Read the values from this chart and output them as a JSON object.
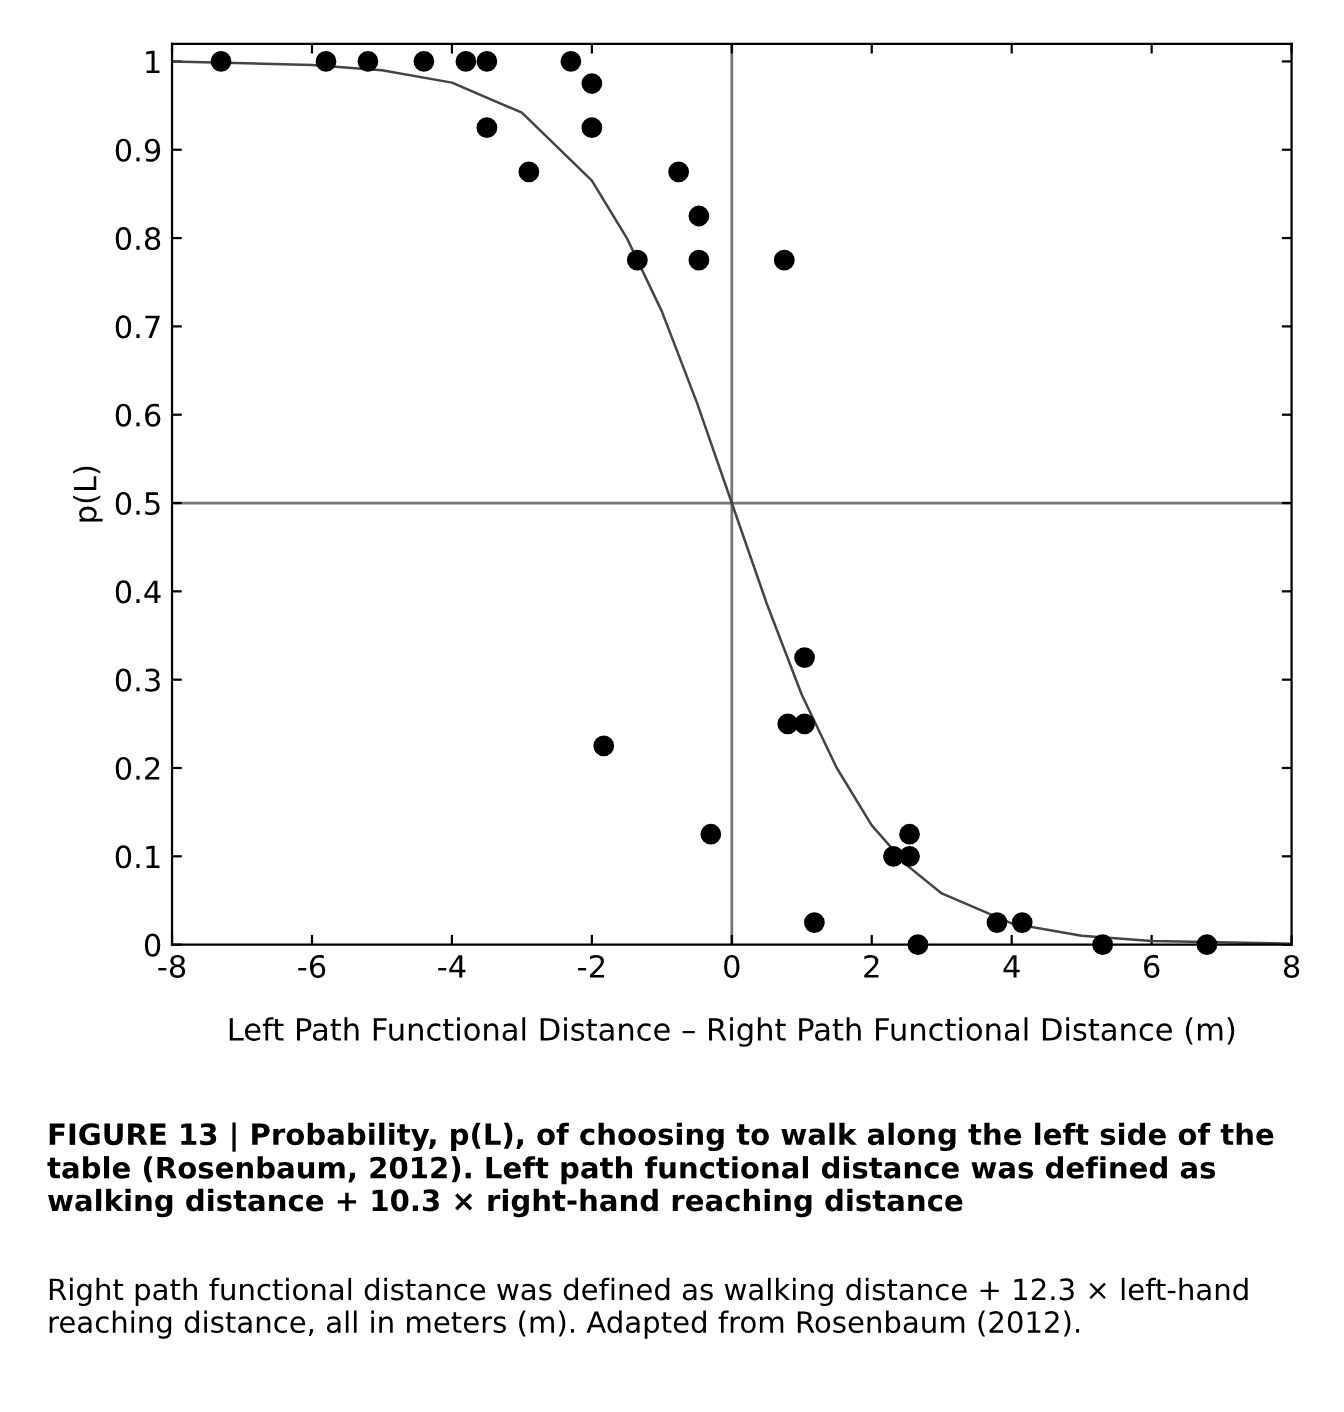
{
  "chart_data": {
    "type": "scatter",
    "xlabel": "Left Path Functional Distance – Right Path Functional Distance (m)",
    "ylabel": "p(L)",
    "xlim": [
      -8,
      8
    ],
    "xticks": [
      -8,
      -6,
      -4,
      -2,
      0,
      2,
      4,
      6,
      8
    ],
    "ylim": [
      0,
      1.02
    ],
    "yticks": [
      0,
      0.1,
      0.2,
      0.3,
      0.4,
      0.5,
      0.6,
      0.7,
      0.8,
      0.9,
      1
    ],
    "series": [
      {
        "color": "#000000",
        "marker": "circle",
        "x": [
          -7.3,
          -5.8,
          -5.2,
          -4.4,
          -3.8,
          -3.5,
          -2.3,
          -3.5,
          -2.9,
          -2.0,
          -2.0,
          -0.76,
          -0.47,
          -1.35,
          -0.47,
          0.75,
          -1.83,
          -0.3,
          1.04,
          0.8,
          1.04,
          1.18,
          2.31,
          2.54,
          2.54,
          2.66,
          3.79,
          4.15,
          5.3,
          6.79
        ],
        "values": [
          1,
          1,
          1,
          1,
          1,
          1,
          1,
          0.925,
          0.875,
          0.975,
          0.925,
          0.875,
          0.825,
          0.775,
          0.775,
          0.775,
          0.225,
          0.125,
          0.325,
          0.25,
          0.25,
          0.025,
          0.1,
          0.1,
          0.125,
          0,
          0.025,
          0.025,
          0,
          0
        ]
      },
      {
        "type": "line",
        "color": "#444444",
        "marker": "none",
        "line_style": "solid",
        "x": [
          -8,
          -6,
          -5,
          -4,
          -3,
          -2,
          -1.5,
          -1,
          -0.5,
          0,
          0.5,
          1,
          1.5,
          2,
          2.5,
          3,
          4,
          5,
          6,
          8
        ],
        "values": [
          1.0,
          0.996,
          0.99,
          0.976,
          0.942,
          0.865,
          0.8,
          0.717,
          0.614,
          0.5,
          0.386,
          0.283,
          0.2,
          0.135,
          0.09,
          0.058,
          0.024,
          0.01,
          0.004,
          0.001
        ]
      }
    ],
    "ref_lines": [
      {
        "axis": "x",
        "value": 0,
        "color": "#777777"
      },
      {
        "axis": "y",
        "value": 0.5,
        "color": "#777777"
      }
    ],
    "grid": false,
    "legend": false,
    "annotations": [
      "FIGURE 13 | Probability, p(L), of choosing to walk along the left side of the table (Rosenbaum, 2012). Left path functional distance was defined as walking distance + 10.3 × right-hand reaching distance",
      "Right path functional distance was defined as walking distance + 12.3 × left-hand reaching distance, all in meters (m). Adapted from Rosenbaum (2012)."
    ]
  }
}
